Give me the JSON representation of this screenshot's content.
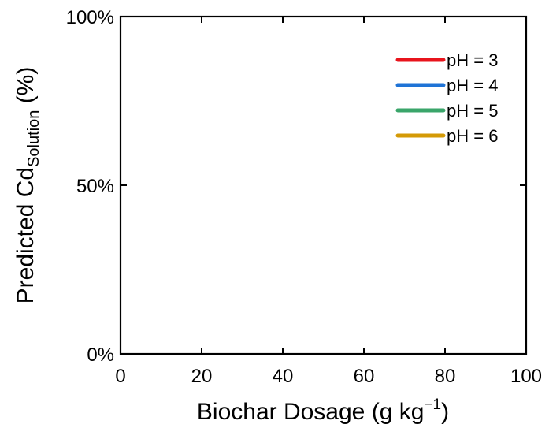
{
  "chart_data": {
    "type": "line",
    "xlabel": "Biochar Dosage (g kg",
    "xlabel_sup": "−1",
    "xlabel_close": ")",
    "ylabel": "Predicted Cd",
    "ylabel_sub": "Solution",
    "ylabel_close": " (%)",
    "xlim": [
      0,
      100
    ],
    "ylim": [
      0,
      100
    ],
    "x_ticks": [
      0,
      20,
      40,
      60,
      80,
      100
    ],
    "x_tick_labels": [
      "0",
      "20",
      "40",
      "60",
      "80",
      "100"
    ],
    "y_ticks": [
      0,
      50,
      100
    ],
    "y_tick_labels": [
      "0%",
      "50%",
      "100%"
    ],
    "grid": false,
    "legend_position": "top-right",
    "series": [
      {
        "name": "pH = 3",
        "color": "#e8141c",
        "x": [],
        "y": []
      },
      {
        "name": "pH = 4",
        "color": "#1f73d6",
        "x": [],
        "y": []
      },
      {
        "name": "pH = 5",
        "color": "#3aa56a",
        "x": [],
        "y": []
      },
      {
        "name": "pH = 6",
        "color": "#d49a06",
        "x": [],
        "y": []
      }
    ]
  }
}
